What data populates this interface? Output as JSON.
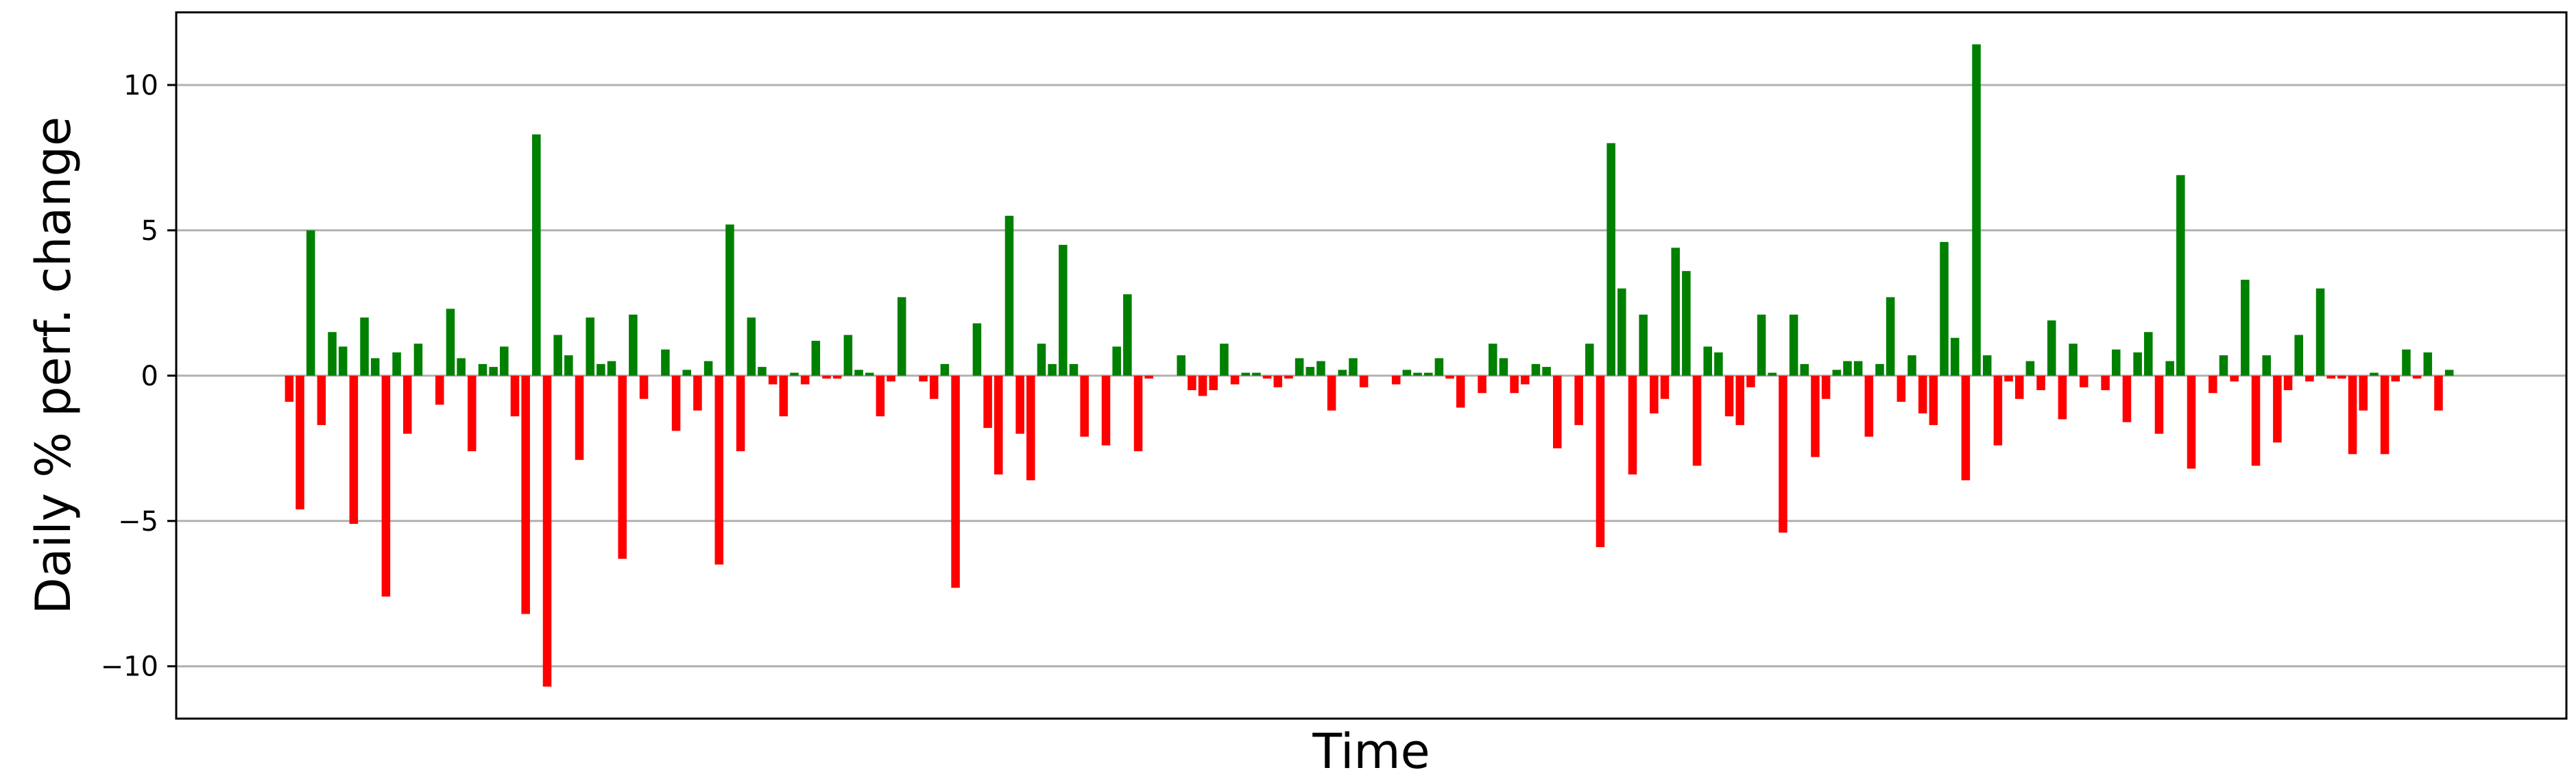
{
  "chart_data": {
    "type": "bar",
    "title": "",
    "xlabel": "Time",
    "ylabel": "Daily % perf. change",
    "ylim": [
      -11.8,
      12.5
    ],
    "yticks": [
      10,
      5,
      0,
      -5,
      -10
    ],
    "ytick_labels": [
      "10",
      "5",
      "0",
      "−5",
      "−10"
    ],
    "grid": "horizontal",
    "colors": {
      "positive": "#008000",
      "negative": "#ff0000",
      "grid": "#b0b0b0",
      "axis": "#000000"
    },
    "values": [
      -0.9,
      -4.6,
      5.0,
      -1.7,
      1.5,
      1.0,
      -5.1,
      2.0,
      0.6,
      -7.6,
      0.8,
      -2.0,
      1.1,
      0.0,
      -1.0,
      2.3,
      0.6,
      -2.6,
      0.4,
      0.3,
      1.0,
      -1.4,
      -8.2,
      8.3,
      -10.7,
      1.4,
      0.7,
      -2.9,
      2.0,
      0.4,
      0.5,
      -6.3,
      2.1,
      -0.8,
      0.0,
      0.9,
      -1.9,
      0.2,
      -1.2,
      0.5,
      -6.5,
      5.2,
      -2.6,
      2.0,
      0.3,
      -0.3,
      -1.4,
      0.1,
      -0.3,
      1.2,
      -0.1,
      -0.1,
      1.4,
      0.2,
      0.1,
      -1.4,
      -0.2,
      2.7,
      0.0,
      -0.2,
      -0.8,
      0.4,
      -7.3,
      0.0,
      1.8,
      -1.8,
      -3.4,
      5.5,
      -2.0,
      -3.6,
      1.1,
      0.4,
      4.5,
      0.4,
      -2.1,
      0.0,
      -2.4,
      1.0,
      2.8,
      -2.6,
      -0.1,
      0.0,
      0.0,
      0.7,
      -0.5,
      -0.7,
      -0.5,
      1.1,
      -0.3,
      0.1,
      0.1,
      -0.1,
      -0.4,
      -0.1,
      0.6,
      0.3,
      0.5,
      -1.2,
      0.2,
      0.6,
      -0.4,
      0.0,
      0.0,
      -0.3,
      0.2,
      0.1,
      0.1,
      0.6,
      -0.1,
      -1.1,
      0.0,
      -0.6,
      1.1,
      0.6,
      -0.6,
      -0.3,
      0.4,
      0.3,
      -2.5,
      0.0,
      -1.7,
      1.1,
      -5.9,
      8.0,
      3.0,
      -3.4,
      2.1,
      -1.3,
      -0.8,
      4.4,
      3.6,
      -3.1,
      1.0,
      0.8,
      -1.4,
      -1.7,
      -0.4,
      2.1,
      0.1,
      -5.4,
      2.1,
      0.4,
      -2.8,
      -0.8,
      0.2,
      0.5,
      0.5,
      -2.1,
      0.4,
      2.7,
      -0.9,
      0.7,
      -1.3,
      -1.7,
      4.6,
      1.3,
      -3.6,
      11.4,
      0.7,
      -2.4,
      -0.2,
      -0.8,
      0.5,
      -0.5,
      1.9,
      -1.5,
      1.1,
      -0.4,
      0.0,
      -0.5,
      0.9,
      -1.6,
      0.8,
      1.5,
      -2.0,
      0.5,
      6.9,
      -3.2,
      0.0,
      -0.6,
      0.7,
      -0.2,
      3.3,
      -3.1,
      0.7,
      -2.3,
      -0.5,
      1.4,
      -0.2,
      3.0,
      -0.1,
      -0.1,
      -2.7,
      -1.2,
      0.1,
      -2.7,
      -0.2,
      0.9,
      -0.1,
      0.8,
      -1.2,
      0.2
    ]
  }
}
